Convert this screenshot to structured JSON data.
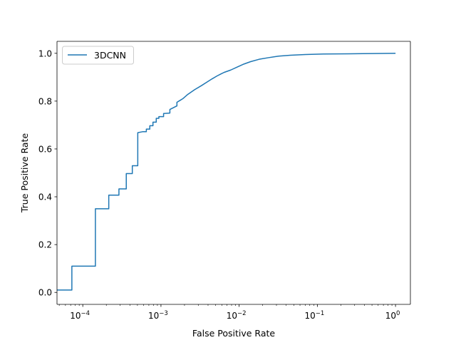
{
  "chart_data": {
    "type": "line",
    "title": "",
    "xlabel": "False Positive Rate",
    "ylabel": "True Positive Rate",
    "xscale": "log",
    "xlim": [
      4.68e-05,
      1.55
    ],
    "ylim": [
      -0.05,
      1.05
    ],
    "xticks": [
      {
        "value": 0.0001,
        "base": "10",
        "exp": "−4"
      },
      {
        "value": 0.001,
        "base": "10",
        "exp": "−3"
      },
      {
        "value": 0.01,
        "base": "10",
        "exp": "−2"
      },
      {
        "value": 0.1,
        "base": "10",
        "exp": "−1"
      },
      {
        "value": 1,
        "base": "10",
        "exp": "0"
      }
    ],
    "yticks": [
      {
        "value": 0.0,
        "label": "0.0"
      },
      {
        "value": 0.2,
        "label": "0.2"
      },
      {
        "value": 0.4,
        "label": "0.4"
      },
      {
        "value": 0.6,
        "label": "0.6"
      },
      {
        "value": 0.8,
        "label": "0.8"
      },
      {
        "value": 1.0,
        "label": "1.0"
      }
    ],
    "grid": false,
    "legend_position": "upper-left",
    "series": [
      {
        "name": "3DCNN",
        "color": "#1f77b4",
        "x": [
          4.68e-05,
          7.25e-05,
          7.25e-05,
          0.000145,
          0.000145,
          0.000215,
          0.000215,
          0.00029,
          0.00029,
          0.00036,
          0.00036,
          0.00043,
          0.00043,
          0.000505,
          0.000505,
          0.00058,
          0.00065,
          0.00065,
          0.00072,
          0.00072,
          0.00079,
          0.00079,
          0.00087,
          0.00087,
          0.00094,
          0.00094,
          0.00108,
          0.00108,
          0.0013,
          0.0013,
          0.0016,
          0.0016,
          0.0019,
          0.0022,
          0.0027,
          0.0033,
          0.0038,
          0.0045,
          0.0052,
          0.0058,
          0.0064,
          0.0078,
          0.0095,
          0.0115,
          0.014,
          0.018,
          0.024,
          0.032,
          0.045,
          0.07,
          0.12,
          0.25,
          0.5,
          1.0
        ],
        "y": [
          0.01,
          0.01,
          0.11,
          0.11,
          0.35,
          0.35,
          0.407,
          0.407,
          0.433,
          0.433,
          0.497,
          0.497,
          0.53,
          0.53,
          0.668,
          0.672,
          0.672,
          0.683,
          0.683,
          0.697,
          0.697,
          0.712,
          0.712,
          0.728,
          0.728,
          0.735,
          0.735,
          0.748,
          0.75,
          0.765,
          0.78,
          0.795,
          0.81,
          0.828,
          0.848,
          0.865,
          0.878,
          0.893,
          0.905,
          0.913,
          0.92,
          0.93,
          0.943,
          0.955,
          0.965,
          0.975,
          0.982,
          0.988,
          0.992,
          0.995,
          0.997,
          0.998,
          0.999,
          1.0
        ]
      }
    ]
  }
}
